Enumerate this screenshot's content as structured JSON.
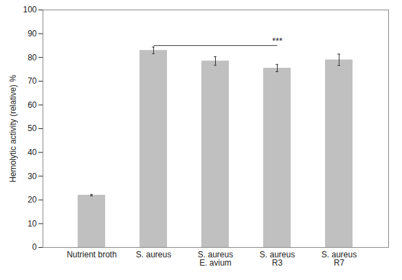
{
  "chart_data": {
    "type": "bar",
    "y_label": "Hemolytic activity (relative) %",
    "categories": [
      "Nutrient broth",
      "S. aureus",
      "S. aureus\nE. avium",
      "S. aureus\nR3",
      "S. aureus\nR7"
    ],
    "values": [
      22,
      83,
      78.5,
      75.5,
      79
    ],
    "errors": [
      0.3,
      1.4,
      1.8,
      1.5,
      2.4
    ],
    "color": "#c0c0c0",
    "ylim": [
      0,
      100
    ],
    "yticks": [
      0,
      10,
      20,
      30,
      40,
      50,
      60,
      70,
      80,
      90,
      100
    ],
    "grid": false,
    "annotations": [
      {
        "text": "***",
        "from": "S. aureus",
        "to": "S. aureus\nR3"
      }
    ]
  }
}
